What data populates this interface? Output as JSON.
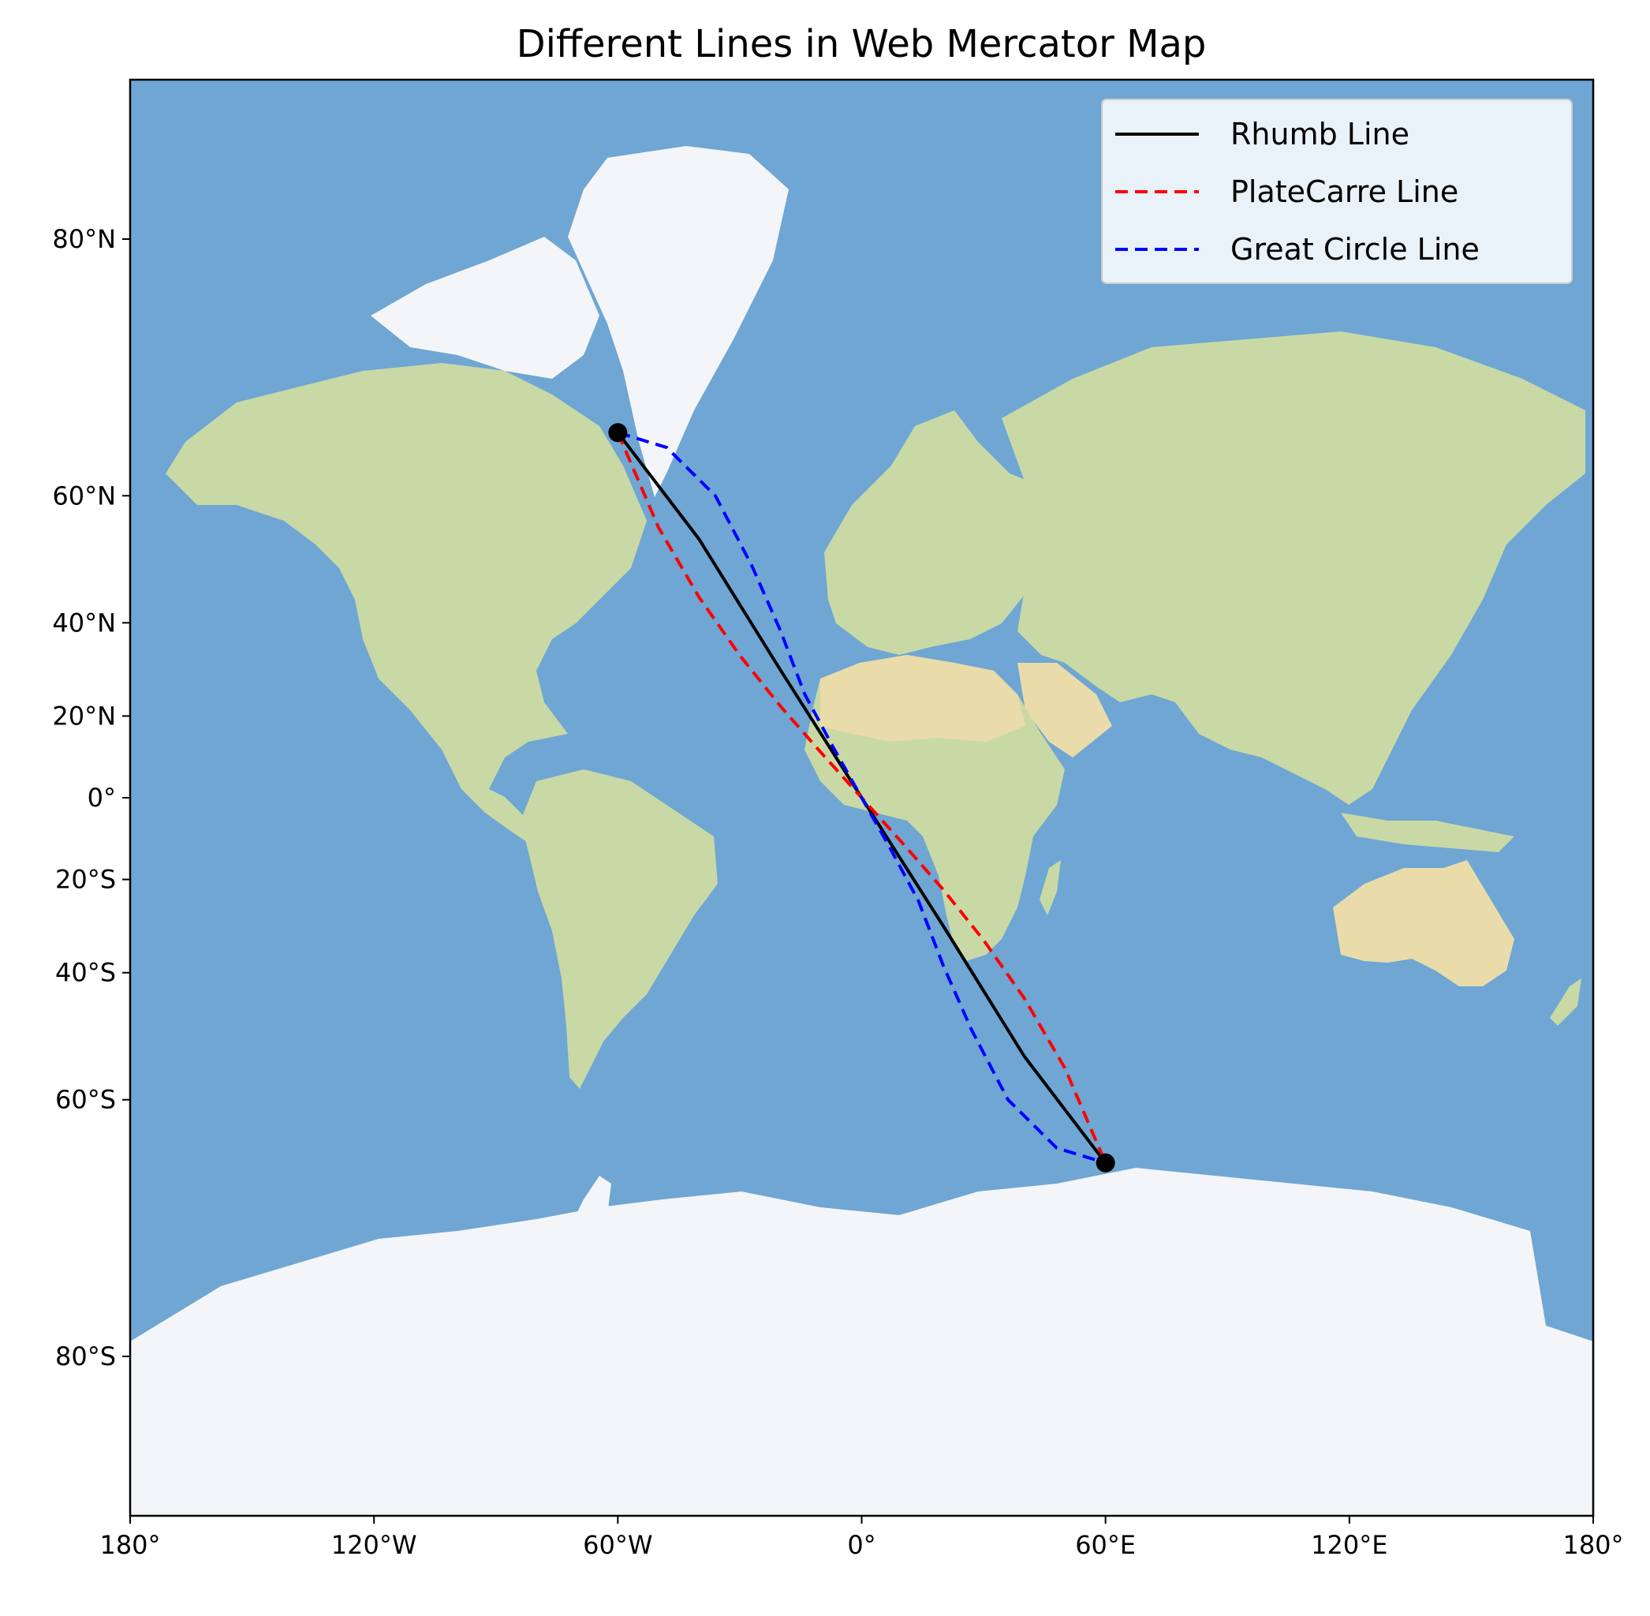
{
  "title": "Different Lines in Web Mercator Map",
  "colors": {
    "ocean": "#6fa6d3",
    "land": "#c9d9a6",
    "desert": "#e9dcaa",
    "ice": "#f3f5f8",
    "rhumb": "#000000",
    "platecarre": "#ff0000",
    "greatcircle": "#0000ff"
  },
  "chart_data": {
    "type": "line",
    "projection": "Web Mercator",
    "xlim": [
      -180,
      180
    ],
    "ylim": [
      -85,
      85
    ],
    "x_ticks": [
      {
        "value": -180,
        "label": "180°"
      },
      {
        "value": -120,
        "label": "120°W"
      },
      {
        "value": -60,
        "label": "60°W"
      },
      {
        "value": 0,
        "label": "0°"
      },
      {
        "value": 60,
        "label": "60°E"
      },
      {
        "value": 120,
        "label": "120°E"
      },
      {
        "value": 180,
        "label": "180°"
      }
    ],
    "y_ticks": [
      {
        "value": 80,
        "label": "80°N"
      },
      {
        "value": 60,
        "label": "60°N"
      },
      {
        "value": 40,
        "label": "40°N"
      },
      {
        "value": 20,
        "label": "20°N"
      },
      {
        "value": 0,
        "label": "0°"
      },
      {
        "value": -20,
        "label": "20°S"
      },
      {
        "value": -40,
        "label": "40°S"
      },
      {
        "value": -60,
        "label": "60°S"
      },
      {
        "value": -80,
        "label": "80°S"
      }
    ],
    "endpoints": [
      {
        "lon": -60,
        "lat": 67
      },
      {
        "lon": 60,
        "lat": -67
      }
    ],
    "series": [
      {
        "name": "Rhumb Line",
        "style": "solid",
        "color": "#000000",
        "points": [
          [
            -60,
            67
          ],
          [
            -40,
            54.1
          ],
          [
            -20,
            30.4
          ],
          [
            0,
            0
          ],
          [
            20,
            -30.4
          ],
          [
            40,
            -54.1
          ],
          [
            60,
            -67
          ]
        ]
      },
      {
        "name": "PlateCarre Line",
        "style": "dashed",
        "color": "#ff0000",
        "points": [
          [
            -60,
            67
          ],
          [
            -50,
            55.8
          ],
          [
            -40,
            44.7
          ],
          [
            -30,
            33.5
          ],
          [
            -20,
            22.3
          ],
          [
            -10,
            11.2
          ],
          [
            0,
            0
          ],
          [
            10,
            -11.2
          ],
          [
            20,
            -22.3
          ],
          [
            30,
            -33.5
          ],
          [
            40,
            -44.7
          ],
          [
            50,
            -55.8
          ],
          [
            60,
            -67
          ]
        ]
      },
      {
        "name": "Great Circle Line",
        "style": "dashed",
        "color": "#0000ff",
        "points": [
          [
            -60,
            67
          ],
          [
            -48,
            65.5
          ],
          [
            -36,
            60
          ],
          [
            -27,
            50
          ],
          [
            -20,
            38.5
          ],
          [
            -14,
            25
          ],
          [
            -7,
            12.5
          ],
          [
            0,
            0
          ],
          [
            7,
            -12.5
          ],
          [
            14,
            -25
          ],
          [
            20,
            -38.5
          ],
          [
            27,
            -50
          ],
          [
            36,
            -60
          ],
          [
            48,
            -65.5
          ],
          [
            60,
            -67
          ]
        ]
      }
    ],
    "legend": {
      "position": "top-right"
    }
  }
}
